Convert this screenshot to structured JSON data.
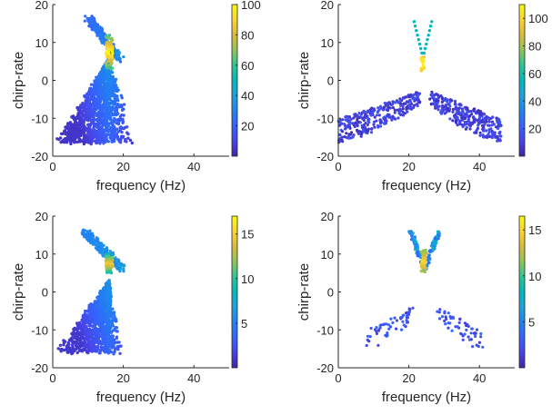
{
  "figure": {
    "colormap": [
      "#3e26a8",
      "#4744e8",
      "#3563fb",
      "#1f84f1",
      "#1ea1de",
      "#00b8be",
      "#2fc494",
      "#8fc654",
      "#dbba3c",
      "#fdd52f",
      "#f9fb0e"
    ]
  },
  "chart_data": [
    {
      "type": "scatter",
      "xlabel": "frequency (Hz)",
      "ylabel": "chirp-rate",
      "xlim": [
        0,
        50
      ],
      "ylim": [
        -20,
        20
      ],
      "xticks": [
        0,
        20,
        40
      ],
      "yticks": [
        -20,
        -10,
        0,
        10,
        20
      ],
      "colorbar": {
        "range": [
          0,
          100
        ],
        "ticks": [
          20,
          40,
          60,
          80,
          100
        ]
      },
      "grid": false,
      "regions": [
        {
          "shape": "wedge",
          "apex": [
            16,
            6
          ],
          "x_range": [
            0,
            28
          ],
          "y_range": [
            -16.5,
            5
          ],
          "value_range": [
            5,
            35
          ]
        },
        {
          "shape": "band",
          "from": [
            10,
            16.5
          ],
          "to": [
            19,
            5.5
          ],
          "value_range": [
            10,
            40
          ]
        },
        {
          "shape": "ridge",
          "x_range": [
            15,
            17
          ],
          "y_range": [
            3,
            12
          ],
          "value_range": [
            60,
            100
          ]
        }
      ]
    },
    {
      "type": "scatter",
      "xlabel": "frequency (Hz)",
      "ylabel": "chirp-rate",
      "xlim": [
        0,
        50
      ],
      "ylim": [
        -20,
        20
      ],
      "xticks": [
        0,
        20,
        40
      ],
      "yticks": [
        -20,
        -10,
        0,
        10,
        20
      ],
      "colorbar": {
        "range": [
          0,
          110
        ],
        "ticks": [
          20,
          40,
          60,
          80,
          100
        ]
      },
      "grid": false,
      "regions": [
        {
          "shape": "arc-left",
          "x_range": [
            0,
            23
          ],
          "y_range": [
            -16.5,
            -3
          ],
          "value_range": [
            2,
            18
          ]
        },
        {
          "shape": "arc-right",
          "x_range": [
            26,
            46
          ],
          "y_range": [
            -16.5,
            -3
          ],
          "value_range": [
            2,
            18
          ]
        },
        {
          "shape": "v-top",
          "x_range": [
            21.5,
            26.5
          ],
          "y_range": [
            6,
            15.5
          ],
          "value_range": [
            45,
            65
          ]
        },
        {
          "shape": "peak",
          "x_range": [
            23.5,
            24.5
          ],
          "y_range": [
            2,
            7
          ],
          "value_range": [
            80,
            110
          ]
        }
      ]
    },
    {
      "type": "scatter",
      "xlabel": "frequency (Hz)",
      "ylabel": "chirp-rate",
      "xlim": [
        0,
        50
      ],
      "ylim": [
        -20,
        20
      ],
      "xticks": [
        0,
        20,
        40
      ],
      "yticks": [
        -20,
        -10,
        0,
        10,
        20
      ],
      "colorbar": {
        "range": [
          0,
          17
        ],
        "ticks": [
          5,
          10,
          15
        ]
      },
      "grid": false,
      "regions": [
        {
          "shape": "wedge",
          "apex": [
            16,
            3
          ],
          "x_range": [
            0,
            22
          ],
          "y_range": [
            -16,
            3
          ],
          "value_range": [
            1,
            6
          ]
        },
        {
          "shape": "band",
          "from": [
            9,
            16
          ],
          "to": [
            20,
            6
          ],
          "value_range": [
            3,
            8
          ]
        },
        {
          "shape": "ridge",
          "x_range": [
            15,
            17
          ],
          "y_range": [
            5,
            10
          ],
          "value_range": [
            9,
            15
          ]
        }
      ]
    },
    {
      "type": "scatter",
      "xlabel": "frequency (Hz)",
      "ylabel": "chirp-rate",
      "xlim": [
        0,
        50
      ],
      "ylim": [
        -20,
        20
      ],
      "xticks": [
        0,
        20,
        40
      ],
      "yticks": [
        -20,
        -10,
        0,
        10,
        20
      ],
      "colorbar": {
        "range": [
          0,
          16.5
        ],
        "ticks": [
          5,
          10,
          15
        ]
      },
      "grid": false,
      "regions": [
        {
          "shape": "arc-left",
          "x_range": [
            8,
            21
          ],
          "y_range": [
            -15.5,
            -4
          ],
          "value_range": [
            1,
            4
          ]
        },
        {
          "shape": "arc-right",
          "x_range": [
            28,
            41
          ],
          "y_range": [
            -15.5,
            -4
          ],
          "value_range": [
            1,
            4
          ]
        },
        {
          "shape": "v-top",
          "x_range": [
            20.5,
            28.5
          ],
          "y_range": [
            6,
            16
          ],
          "value_range": [
            3,
            8
          ]
        },
        {
          "shape": "peak",
          "x_range": [
            23.5,
            25
          ],
          "y_range": [
            5,
            11
          ],
          "value_range": [
            9,
            15
          ]
        }
      ]
    }
  ]
}
